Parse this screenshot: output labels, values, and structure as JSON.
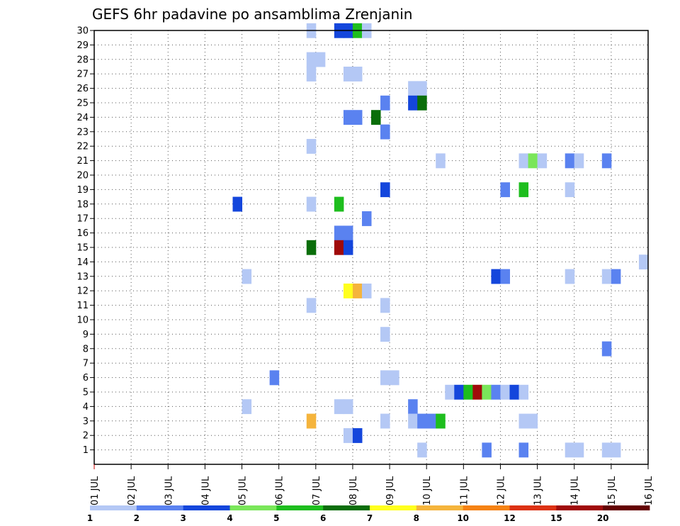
{
  "chart_data": {
    "type": "heatmap",
    "title": "GEFS 6hr padavine po ansamblima Zrenjanin",
    "xlabel": "",
    "ylabel": "",
    "x_ticks": [
      "01 JUL",
      "02 JUL",
      "03 JUL",
      "04 JUL",
      "05 JUL",
      "06 JUL",
      "07 JUL",
      "08 JUL",
      "09 JUL",
      "10 JUL",
      "11 JUL",
      "12 JUL",
      "13 JUL",
      "14 JUL",
      "15 JUL",
      "16 JUL"
    ],
    "y_ticks": [
      "1",
      "2",
      "3",
      "4",
      "5",
      "6",
      "7",
      "8",
      "9",
      "10",
      "11",
      "12",
      "13",
      "14",
      "15",
      "16",
      "17",
      "18",
      "19",
      "20",
      "21",
      "22",
      "23",
      "24",
      "25",
      "26",
      "27",
      "28",
      "29",
      "30"
    ],
    "xlim": [
      "01 JUL",
      "16 JUL"
    ],
    "ylim": [
      0,
      30
    ],
    "grid": true,
    "legend": {
      "position": "bottom",
      "labels": [
        "1",
        "2",
        "3",
        "4",
        "5",
        "6",
        "7",
        "8",
        "10",
        "12",
        "15",
        "20"
      ],
      "colors": [
        "#b4c8f5",
        "#5a82f0",
        "#1446dc",
        "#7ae65a",
        "#1ebe1e",
        "#0a6e0a",
        "#ffff1e",
        "#f5b43c",
        "#f58214",
        "#dc3214",
        "#a00a0a",
        "#640000"
      ]
    },
    "cells": [
      {
        "d": 6.75,
        "m": 30,
        "c": 0
      },
      {
        "d": 7.5,
        "m": 30,
        "c": 2
      },
      {
        "d": 7.75,
        "m": 30,
        "c": 2
      },
      {
        "d": 8.0,
        "m": 30,
        "c": 4
      },
      {
        "d": 8.25,
        "m": 30,
        "c": 0
      },
      {
        "d": 6.75,
        "m": 28,
        "c": 0
      },
      {
        "d": 7.0,
        "m": 28,
        "c": 0
      },
      {
        "d": 6.75,
        "m": 27,
        "c": 0
      },
      {
        "d": 7.75,
        "m": 27,
        "c": 0
      },
      {
        "d": 8.0,
        "m": 27,
        "c": 0
      },
      {
        "d": 9.5,
        "m": 26,
        "c": 0
      },
      {
        "d": 9.75,
        "m": 26,
        "c": 0
      },
      {
        "d": 8.75,
        "m": 25,
        "c": 1
      },
      {
        "d": 9.5,
        "m": 25,
        "c": 2
      },
      {
        "d": 9.75,
        "m": 25,
        "c": 5
      },
      {
        "d": 7.75,
        "m": 24,
        "c": 1
      },
      {
        "d": 8.0,
        "m": 24,
        "c": 1
      },
      {
        "d": 8.5,
        "m": 24,
        "c": 5
      },
      {
        "d": 8.75,
        "m": 23,
        "c": 1
      },
      {
        "d": 6.75,
        "m": 22,
        "c": 0
      },
      {
        "d": 10.25,
        "m": 21,
        "c": 0
      },
      {
        "d": 12.5,
        "m": 21,
        "c": 0
      },
      {
        "d": 12.75,
        "m": 21,
        "c": 3
      },
      {
        "d": 13.0,
        "m": 21,
        "c": 0
      },
      {
        "d": 13.75,
        "m": 21,
        "c": 1
      },
      {
        "d": 14.0,
        "m": 21,
        "c": 0
      },
      {
        "d": 14.75,
        "m": 21,
        "c": 1
      },
      {
        "d": 8.75,
        "m": 19,
        "c": 2
      },
      {
        "d": 12.0,
        "m": 19,
        "c": 1
      },
      {
        "d": 12.5,
        "m": 19,
        "c": 4
      },
      {
        "d": 13.75,
        "m": 19,
        "c": 0
      },
      {
        "d": 4.75,
        "m": 18,
        "c": 2
      },
      {
        "d": 6.75,
        "m": 18,
        "c": 0
      },
      {
        "d": 7.5,
        "m": 18,
        "c": 4
      },
      {
        "d": 8.25,
        "m": 17,
        "c": 1
      },
      {
        "d": 7.5,
        "m": 16,
        "c": 1
      },
      {
        "d": 7.75,
        "m": 16,
        "c": 1
      },
      {
        "d": 6.75,
        "m": 15,
        "c": 5
      },
      {
        "d": 7.5,
        "m": 15,
        "c": 10
      },
      {
        "d": 7.75,
        "m": 15,
        "c": 2
      },
      {
        "d": 15.75,
        "m": 14,
        "c": 0
      },
      {
        "d": 5.0,
        "m": 13,
        "c": 0
      },
      {
        "d": 11.75,
        "m": 13,
        "c": 2
      },
      {
        "d": 12.0,
        "m": 13,
        "c": 1
      },
      {
        "d": 13.75,
        "m": 13,
        "c": 0
      },
      {
        "d": 14.75,
        "m": 13,
        "c": 0
      },
      {
        "d": 15.0,
        "m": 13,
        "c": 1
      },
      {
        "d": 7.75,
        "m": 12,
        "c": 6
      },
      {
        "d": 8.0,
        "m": 12,
        "c": 7
      },
      {
        "d": 8.25,
        "m": 12,
        "c": 0
      },
      {
        "d": 6.75,
        "m": 11,
        "c": 0
      },
      {
        "d": 8.75,
        "m": 11,
        "c": 0
      },
      {
        "d": 8.75,
        "m": 9,
        "c": 0
      },
      {
        "d": 14.75,
        "m": 8,
        "c": 1
      },
      {
        "d": 5.75,
        "m": 6,
        "c": 1
      },
      {
        "d": 8.75,
        "m": 6,
        "c": 0
      },
      {
        "d": 9.0,
        "m": 6,
        "c": 0
      },
      {
        "d": 10.5,
        "m": 5,
        "c": 0
      },
      {
        "d": 10.75,
        "m": 5,
        "c": 2
      },
      {
        "d": 11.0,
        "m": 5,
        "c": 4
      },
      {
        "d": 11.25,
        "m": 5,
        "c": 10
      },
      {
        "d": 11.5,
        "m": 5,
        "c": 3
      },
      {
        "d": 11.75,
        "m": 5,
        "c": 1
      },
      {
        "d": 12.0,
        "m": 5,
        "c": 0
      },
      {
        "d": 12.25,
        "m": 5,
        "c": 2
      },
      {
        "d": 12.5,
        "m": 5,
        "c": 0
      },
      {
        "d": 5.0,
        "m": 4,
        "c": 0
      },
      {
        "d": 7.5,
        "m": 4,
        "c": 0
      },
      {
        "d": 7.75,
        "m": 4,
        "c": 0
      },
      {
        "d": 9.5,
        "m": 4,
        "c": 1
      },
      {
        "d": 6.75,
        "m": 3,
        "c": 7
      },
      {
        "d": 8.75,
        "m": 3,
        "c": 0
      },
      {
        "d": 9.5,
        "m": 3,
        "c": 0
      },
      {
        "d": 9.75,
        "m": 3,
        "c": 1
      },
      {
        "d": 10.0,
        "m": 3,
        "c": 1
      },
      {
        "d": 10.25,
        "m": 3,
        "c": 4
      },
      {
        "d": 12.5,
        "m": 3,
        "c": 0
      },
      {
        "d": 12.75,
        "m": 3,
        "c": 0
      },
      {
        "d": 7.75,
        "m": 2,
        "c": 0
      },
      {
        "d": 8.0,
        "m": 2,
        "c": 2
      },
      {
        "d": 9.75,
        "m": 1,
        "c": 0
      },
      {
        "d": 11.5,
        "m": 1,
        "c": 1
      },
      {
        "d": 12.5,
        "m": 1,
        "c": 1
      },
      {
        "d": 13.75,
        "m": 1,
        "c": 0
      },
      {
        "d": 14.0,
        "m": 1,
        "c": 0
      },
      {
        "d": 14.75,
        "m": 1,
        "c": 0
      },
      {
        "d": 15.0,
        "m": 1,
        "c": 0
      }
    ]
  }
}
